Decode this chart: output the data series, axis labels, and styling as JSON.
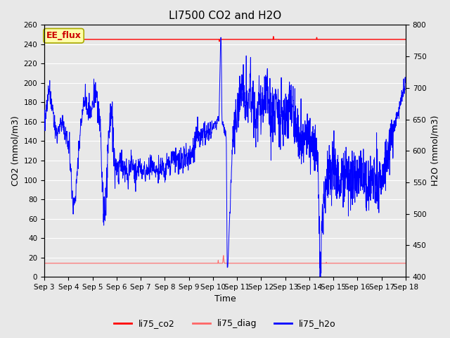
{
  "title": "LI7500 CO2 and H2O",
  "xlabel": "Time",
  "ylabel_left": "CO2 (mmol/m3)",
  "ylabel_right": "H2O (mmol/m3)",
  "ylim_left": [
    0,
    260
  ],
  "ylim_right": [
    400,
    800
  ],
  "yticks_left": [
    0,
    20,
    40,
    60,
    80,
    100,
    120,
    140,
    160,
    180,
    200,
    220,
    240,
    260
  ],
  "yticks_right": [
    400,
    450,
    500,
    550,
    600,
    650,
    700,
    750,
    800
  ],
  "xtick_labels": [
    "Sep 3",
    "Sep 4",
    "Sep 5",
    "Sep 6",
    "Sep 7",
    "Sep 8",
    "Sep 9",
    "Sep 10",
    "Sep 11",
    "Sep 12",
    "Sep 13",
    "Sep 14",
    "Sep 15",
    "Sep 16",
    "Sep 17",
    "Sep 18"
  ],
  "co2_color": "#FF0000",
  "diag_color": "#FF6666",
  "h2o_color": "#0000FF",
  "background_color": "#E8E8E8",
  "grid_color": "#FFFFFF",
  "annotation_text": "EE_flux",
  "annotation_box_color": "#FFFFAA",
  "annotation_border_color": "#AAAA00",
  "legend_entries": [
    "li75_co2",
    "li75_diag",
    "li75_h2o"
  ],
  "legend_colors": [
    "#FF0000",
    "#FF6666",
    "#0000FF"
  ],
  "title_fontsize": 11,
  "axis_fontsize": 9,
  "tick_fontsize": 7.5
}
